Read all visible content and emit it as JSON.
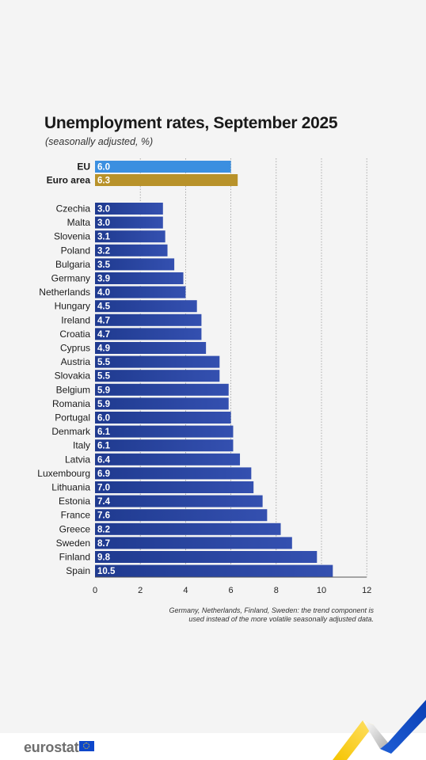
{
  "title": "Unemployment rates, September 2025",
  "subtitle": "(seasonally adjusted, %)",
  "footnote": "Germany, Netherlands, Finland, Sweden: the trend component is used instead of the more volatile seasonally adjusted data.",
  "logo": {
    "text": "eurostat",
    "icon": "eu-flag-icon"
  },
  "colors": {
    "eu_bar": "#3b8fe0",
    "euro_area_bar": "#b8922a",
    "country_bar": "#1f3a8f",
    "country_bar_light": "#3450b0",
    "grid": "#9a9a9a",
    "text": "#1a1a1a"
  },
  "chart_data": {
    "type": "bar",
    "orientation": "horizontal",
    "title": "Unemployment rates, September 2025",
    "subtitle": "(seasonally adjusted, %)",
    "xlim": [
      0,
      12
    ],
    "x_ticks": [
      "0",
      "2",
      "4",
      "6",
      "8",
      "10",
      "12"
    ],
    "grid": "vertical dotted",
    "aggregates": [
      {
        "label": "EU",
        "value": 6.0,
        "value_label": "6.0"
      },
      {
        "label": "Euro area",
        "value": 6.3,
        "value_label": "6.3"
      }
    ],
    "categories": [
      "Czechia",
      "Malta",
      "Slovenia",
      "Poland",
      "Bulgaria",
      "Germany",
      "Netherlands",
      "Hungary",
      "Ireland",
      "Croatia",
      "Cyprus",
      "Austria",
      "Slovakia",
      "Belgium",
      "Romania",
      "Portugal",
      "Denmark",
      "Italy",
      "Latvia",
      "Luxembourg",
      "Lithuania",
      "Estonia",
      "France",
      "Greece",
      "Sweden",
      "Finland",
      "Spain"
    ],
    "values": [
      3.0,
      3.0,
      3.1,
      3.2,
      3.5,
      3.9,
      4.0,
      4.5,
      4.7,
      4.7,
      4.9,
      5.5,
      5.5,
      5.9,
      5.9,
      6.0,
      6.1,
      6.1,
      6.4,
      6.9,
      7.0,
      7.4,
      7.6,
      8.2,
      8.7,
      9.8,
      10.5
    ],
    "value_labels": [
      "3.0",
      "3.0",
      "3.1",
      "3.2",
      "3.5",
      "3.9",
      "4.0",
      "4.5",
      "4.7",
      "4.7",
      "4.9",
      "5.5",
      "5.5",
      "5.9",
      "5.9",
      "6.0",
      "6.1",
      "6.1",
      "6.4",
      "6.9",
      "7.0",
      "7.4",
      "7.6",
      "8.2",
      "8.7",
      "9.8",
      "10.5"
    ]
  }
}
